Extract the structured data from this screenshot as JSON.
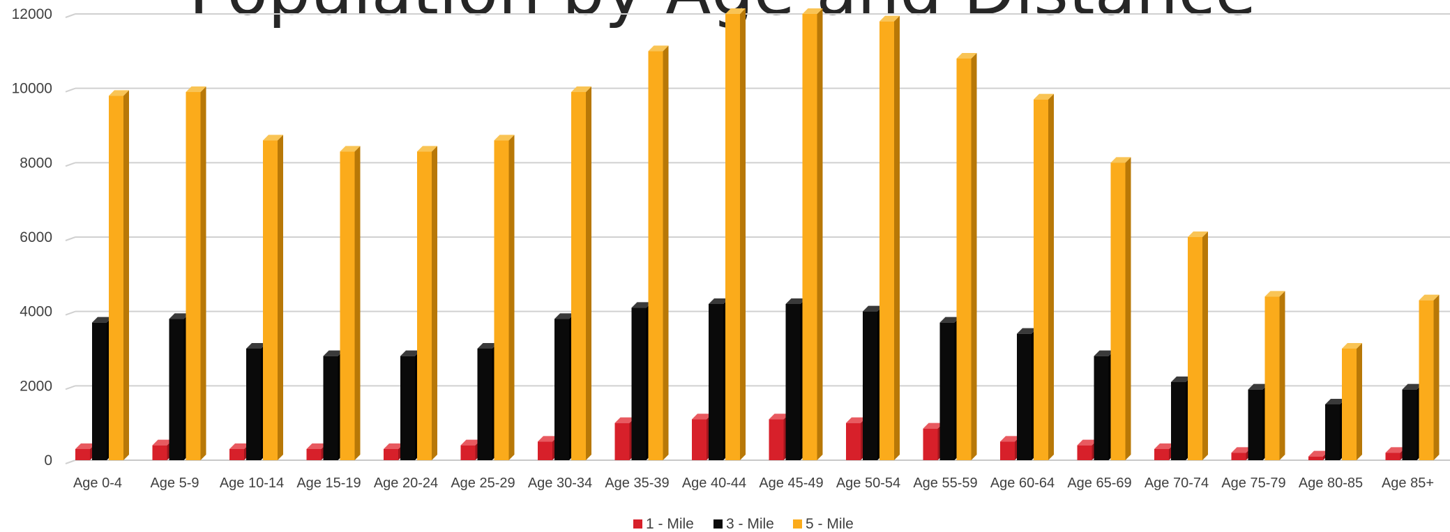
{
  "chart_data": {
    "type": "bar",
    "title": "Population by Age and Distance",
    "categories": [
      "Age 0-4",
      "Age 5-9",
      "Age 10-14",
      "Age 15-19",
      "Age 20-24",
      "Age 25-29",
      "Age 30-34",
      "Age 35-39",
      "Age 40-44",
      "Age 45-49",
      "Age 50-54",
      "Age 55-59",
      "Age 60-64",
      "Age 65-69",
      "Age 70-74",
      "Age 75-79",
      "Age 80-85",
      "Age 85+"
    ],
    "series": [
      {
        "name": "1 - Mile",
        "color": "#d7202a",
        "side": "#a3161d",
        "top": "#e85a60",
        "values": [
          300,
          400,
          300,
          300,
          300,
          400,
          500,
          1000,
          1100,
          1100,
          1000,
          850,
          500,
          400,
          300,
          200,
          100,
          200
        ]
      },
      {
        "name": "3 - Mile",
        "color": "#0a0a0a",
        "side": "#000000",
        "top": "#3a3a3a",
        "values": [
          3700,
          3800,
          3000,
          2800,
          2800,
          3000,
          3800,
          4100,
          4200,
          4200,
          4000,
          3700,
          3400,
          2800,
          2100,
          1900,
          1500,
          1900
        ]
      },
      {
        "name": "5 - Mile",
        "color": "#fbab1b",
        "side": "#b87807",
        "top": "#f9c455",
        "values": [
          9800,
          9900,
          8600,
          8300,
          8300,
          8600,
          9900,
          11000,
          12000,
          12000,
          11800,
          10800,
          9700,
          8000,
          6000,
          4400,
          3000,
          4300
        ]
      }
    ],
    "yticks": [
      "0",
      "2000",
      "4000",
      "6000",
      "8000",
      "10000",
      "12000"
    ],
    "ylim": [
      0,
      12000
    ],
    "grid": true,
    "legend": "bottom",
    "xlabel": "",
    "ylabel": ""
  }
}
